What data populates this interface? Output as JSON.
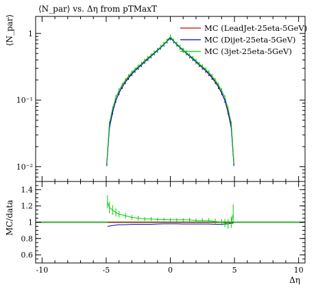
{
  "chart_data": [
    {
      "type": "scatter",
      "title": "⟨N_par⟩ vs. Δη from pTMaxT",
      "xlabel": "",
      "ylabel": "⟨N_par⟩",
      "yscale": "log",
      "xlim": [
        -10.5,
        10.5
      ],
      "ylim": [
        0.006,
        1.8
      ],
      "yticks": [
        {
          "value": 0.01,
          "label": "10⁻²"
        },
        {
          "value": 0.1,
          "label": "10⁻¹"
        },
        {
          "value": 1,
          "label": "1"
        }
      ],
      "legend_position": "top-right",
      "series": [
        {
          "name": "MC (LeadJet-25eta-5GeV)",
          "color": "#cc0000",
          "x": [
            -4.95,
            -4.75,
            -4.5,
            -4.25,
            -4.0,
            -3.75,
            -3.5,
            -3.25,
            -3.0,
            -2.75,
            -2.5,
            -2.25,
            -2.0,
            -1.75,
            -1.5,
            -1.25,
            -1.0,
            -0.75,
            -0.5,
            -0.25,
            0.0,
            0.25,
            0.5,
            0.75,
            1.0,
            1.25,
            1.5,
            1.75,
            2.0,
            2.25,
            2.5,
            2.75,
            3.0,
            3.25,
            3.5,
            3.75,
            4.0,
            4.25,
            4.5,
            4.75,
            4.95
          ],
          "y": [
            0.011,
            0.04,
            0.067,
            0.1,
            0.13,
            0.16,
            0.19,
            0.22,
            0.25,
            0.28,
            0.31,
            0.34,
            0.38,
            0.42,
            0.46,
            0.51,
            0.56,
            0.62,
            0.69,
            0.77,
            0.86,
            0.77,
            0.69,
            0.62,
            0.56,
            0.51,
            0.46,
            0.42,
            0.38,
            0.34,
            0.31,
            0.28,
            0.25,
            0.22,
            0.19,
            0.16,
            0.13,
            0.1,
            0.067,
            0.04,
            0.011
          ]
        },
        {
          "name": "MC (Dijet-25eta-5GeV)",
          "color": "#0000cc",
          "x": [
            -4.95,
            -4.75,
            -4.5,
            -4.25,
            -4.0,
            -3.75,
            -3.5,
            -3.25,
            -3.0,
            -2.75,
            -2.5,
            -2.25,
            -2.0,
            -1.75,
            -1.5,
            -1.25,
            -1.0,
            -0.75,
            -0.5,
            -0.25,
            0.0,
            0.25,
            0.5,
            0.75,
            1.0,
            1.25,
            1.5,
            1.75,
            2.0,
            2.25,
            2.5,
            2.75,
            3.0,
            3.25,
            3.5,
            3.75,
            4.0,
            4.25,
            4.5,
            4.75,
            4.95
          ],
          "y": [
            0.011,
            0.038,
            0.065,
            0.098,
            0.127,
            0.157,
            0.186,
            0.215,
            0.245,
            0.275,
            0.305,
            0.335,
            0.374,
            0.413,
            0.453,
            0.503,
            0.553,
            0.612,
            0.682,
            0.762,
            0.85,
            0.762,
            0.682,
            0.612,
            0.553,
            0.503,
            0.453,
            0.413,
            0.374,
            0.335,
            0.305,
            0.275,
            0.245,
            0.215,
            0.186,
            0.157,
            0.127,
            0.098,
            0.065,
            0.038,
            0.011
          ]
        },
        {
          "name": "MC (3jet-25eta-5GeV)",
          "color": "#00cc00",
          "x": [
            -4.95,
            -4.75,
            -4.5,
            -4.25,
            -4.0,
            -3.75,
            -3.5,
            -3.25,
            -3.0,
            -2.75,
            -2.5,
            -2.25,
            -2.0,
            -1.75,
            -1.5,
            -1.25,
            -1.0,
            -0.75,
            -0.5,
            -0.25,
            0.0,
            0.25,
            0.5,
            0.75,
            1.0,
            1.25,
            1.5,
            1.75,
            2.0,
            2.25,
            2.5,
            2.75,
            3.0,
            3.25,
            3.5,
            3.75,
            4.0,
            4.25,
            4.5,
            4.75,
            4.95
          ],
          "y": [
            0.012,
            0.045,
            0.075,
            0.11,
            0.14,
            0.17,
            0.2,
            0.23,
            0.26,
            0.29,
            0.32,
            0.35,
            0.39,
            0.43,
            0.47,
            0.52,
            0.57,
            0.63,
            0.7,
            0.78,
            0.9,
            0.78,
            0.7,
            0.63,
            0.57,
            0.52,
            0.47,
            0.43,
            0.39,
            0.35,
            0.32,
            0.29,
            0.26,
            0.23,
            0.2,
            0.17,
            0.14,
            0.11,
            0.075,
            0.045,
            0.012
          ]
        }
      ]
    },
    {
      "type": "scatter",
      "title": "",
      "xlabel": "Δη",
      "ylabel": "MC/data",
      "xlim": [
        -10.5,
        10.5
      ],
      "ylim": [
        0.5,
        1.5
      ],
      "xticks": [
        -10,
        -5,
        0,
        5,
        10
      ],
      "yticks": [
        0.6,
        0.8,
        1,
        1.2,
        1.4
      ],
      "reference_line": 1,
      "series": [
        {
          "name": "MC (LeadJet-25eta-5GeV)",
          "color": "#cc0000",
          "x": [
            -4.9,
            -4.5,
            -4.0,
            -3.5,
            -3.0,
            -2.5,
            -2.0,
            -1.5,
            -1.0,
            -0.5,
            0.0,
            0.5,
            1.0,
            1.5,
            2.0,
            2.5,
            3.0,
            3.5,
            4.0,
            4.5,
            4.9
          ],
          "y": [
            1.0,
            1.0,
            1.0,
            1.0,
            1.0,
            1.0,
            1.0,
            1.0,
            1.0,
            1.0,
            1.0,
            1.0,
            1.0,
            1.0,
            1.0,
            1.0,
            1.0,
            1.0,
            1.0,
            1.0,
            1.0
          ]
        },
        {
          "name": "MC (Dijet-25eta-5GeV)",
          "color": "#0000cc",
          "x": [
            -4.9,
            -4.5,
            -4.0,
            -3.5,
            -3.0,
            -2.5,
            -2.0,
            -1.5,
            -1.0,
            -0.5,
            0.0,
            0.5,
            1.0,
            1.5,
            2.0,
            2.5,
            3.0,
            3.5,
            4.0,
            4.5,
            4.9
          ],
          "y": [
            0.95,
            0.96,
            0.97,
            0.97,
            0.975,
            0.975,
            0.975,
            0.975,
            0.978,
            0.98,
            0.98,
            0.98,
            0.978,
            0.978,
            0.978,
            0.978,
            0.978,
            0.975,
            0.975,
            0.98,
            0.99
          ]
        },
        {
          "name": "MC (3jet-25eta-5GeV)",
          "color": "#00cc00",
          "x": [
            -4.9,
            -4.75,
            -4.5,
            -4.25,
            -4.0,
            -3.5,
            -3.0,
            -2.5,
            -2.0,
            -1.5,
            -1.0,
            -0.5,
            0.0,
            0.5,
            1.0,
            1.5,
            2.0,
            2.5,
            3.0,
            3.5,
            4.0,
            4.25,
            4.5,
            4.75,
            4.9
          ],
          "y": [
            1.25,
            1.18,
            1.15,
            1.12,
            1.1,
            1.08,
            1.06,
            1.05,
            1.04,
            1.04,
            1.035,
            1.035,
            1.03,
            1.03,
            1.03,
            1.03,
            1.02,
            1.02,
            1.02,
            1.01,
            1.0,
            0.99,
            0.98,
            1.0,
            1.1
          ],
          "yerr": [
            0.08,
            0.07,
            0.06,
            0.05,
            0.04,
            0.035,
            0.03,
            0.03,
            0.025,
            0.025,
            0.02,
            0.02,
            0.02,
            0.02,
            0.02,
            0.025,
            0.025,
            0.03,
            0.03,
            0.035,
            0.04,
            0.05,
            0.06,
            0.07,
            0.12
          ]
        }
      ]
    }
  ]
}
